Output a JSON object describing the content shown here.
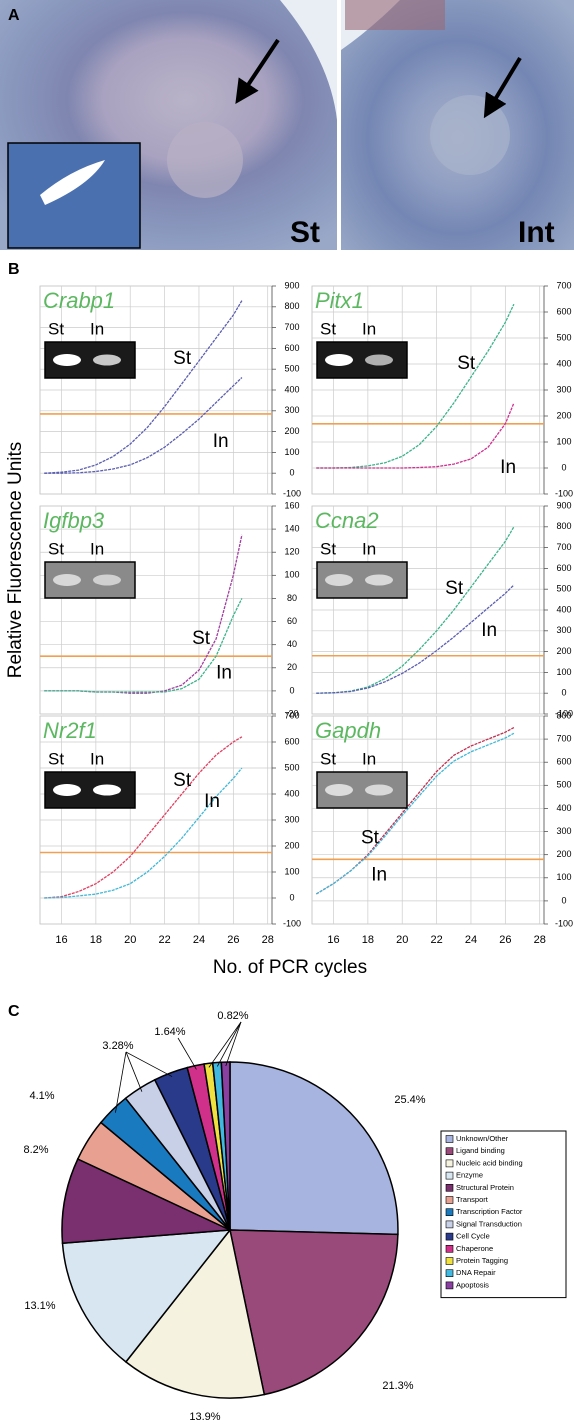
{
  "figure": {
    "panel_a": {
      "label": "A",
      "left_label": "St",
      "right_label": "Int"
    },
    "panel_b": {
      "label": "B",
      "y_label": "Relative Fluorescence Units",
      "x_label": "No. of PCR cycles"
    },
    "panel_c": {
      "label": "C"
    }
  },
  "chart_data": [
    {
      "type": "line",
      "title": "Crabp1",
      "x": [
        15,
        16,
        17,
        18,
        19,
        20,
        21,
        22,
        23,
        24,
        25,
        26,
        26.5
      ],
      "xlim": [
        14.75,
        28.25
      ],
      "xticks": [
        16,
        18,
        20,
        22,
        24,
        26,
        28
      ],
      "ylim": [
        -100,
        900
      ],
      "yticks": [
        -100,
        0,
        100,
        200,
        300,
        400,
        500,
        600,
        700,
        800,
        900
      ],
      "threshold": 285,
      "threshold_color": "#f0a050",
      "grid": true,
      "series": [
        {
          "name": "St",
          "color": "#5b5fb0",
          "values": [
            0,
            5,
            15,
            40,
            80,
            140,
            220,
            320,
            430,
            540,
            650,
            760,
            830
          ]
        },
        {
          "name": "In",
          "color": "#5b5fb0",
          "values": [
            0,
            0,
            2,
            8,
            20,
            40,
            75,
            125,
            190,
            260,
            340,
            420,
            460
          ]
        }
      ]
    },
    {
      "type": "line",
      "title": "Pitx1",
      "x": [
        15,
        16,
        17,
        18,
        19,
        20,
        21,
        22,
        23,
        24,
        25,
        26,
        26.5
      ],
      "xlim": [
        14.75,
        28.25
      ],
      "xticks": [
        16,
        18,
        20,
        22,
        24,
        26,
        28
      ],
      "ylim": [
        -100,
        700
      ],
      "yticks": [
        -100,
        0,
        100,
        200,
        300,
        400,
        500,
        600,
        700
      ],
      "threshold": 170,
      "threshold_color": "#f0a050",
      "grid": true,
      "series": [
        {
          "name": "St",
          "color": "#3cb38a",
          "values": [
            0,
            0,
            2,
            8,
            20,
            45,
            90,
            160,
            250,
            350,
            450,
            560,
            630
          ]
        },
        {
          "name": "In",
          "color": "#d03090",
          "values": [
            0,
            0,
            0,
            0,
            0,
            0,
            2,
            5,
            15,
            35,
            80,
            170,
            250
          ]
        }
      ]
    },
    {
      "type": "line",
      "title": "Igfbp3",
      "x": [
        15,
        16,
        17,
        18,
        19,
        20,
        21,
        22,
        23,
        24,
        25,
        26,
        26.5
      ],
      "xlim": [
        14.75,
        28.25
      ],
      "xticks": [
        16,
        18,
        20,
        22,
        24,
        26,
        28
      ],
      "ylim": [
        -20,
        160
      ],
      "yticks": [
        -20,
        0,
        20,
        40,
        60,
        80,
        100,
        120,
        140,
        160
      ],
      "threshold": 30,
      "threshold_color": "#f0a050",
      "grid": true,
      "series": [
        {
          "name": "St",
          "color": "#a040a0",
          "values": [
            0,
            0,
            0,
            -1,
            -1,
            -2,
            -2,
            0,
            5,
            18,
            45,
            100,
            135
          ]
        },
        {
          "name": "In",
          "color": "#3cb38a",
          "values": [
            0,
            0,
            0,
            -1,
            -1,
            -1,
            -1,
            -1,
            2,
            10,
            30,
            65,
            80
          ]
        }
      ]
    },
    {
      "type": "line",
      "title": "Ccna2",
      "x": [
        15,
        16,
        17,
        18,
        19,
        20,
        21,
        22,
        23,
        24,
        25,
        26,
        26.5
      ],
      "xlim": [
        14.75,
        28.25
      ],
      "xticks": [
        16,
        18,
        20,
        22,
        24,
        26,
        28
      ],
      "ylim": [
        -100,
        900
      ],
      "yticks": [
        -100,
        0,
        100,
        200,
        300,
        400,
        500,
        600,
        700,
        800,
        900
      ],
      "threshold": 180,
      "threshold_color": "#f0a050",
      "grid": true,
      "series": [
        {
          "name": "St",
          "color": "#3cb38a",
          "values": [
            0,
            2,
            10,
            30,
            70,
            130,
            210,
            300,
            400,
            510,
            620,
            730,
            800
          ]
        },
        {
          "name": "In",
          "color": "#5b5fb0",
          "values": [
            0,
            2,
            8,
            25,
            55,
            95,
            145,
            205,
            270,
            340,
            410,
            480,
            520
          ]
        }
      ]
    },
    {
      "type": "line",
      "title": "Nr2f1",
      "x": [
        15,
        16,
        17,
        18,
        19,
        20,
        21,
        22,
        23,
        24,
        25,
        26,
        26.5
      ],
      "xlim": [
        14.75,
        28.25
      ],
      "xticks": [
        16,
        18,
        20,
        22,
        24,
        26,
        28
      ],
      "ylim": [
        -100,
        700
      ],
      "yticks": [
        -100,
        0,
        100,
        200,
        300,
        400,
        500,
        600,
        700
      ],
      "threshold": 175,
      "threshold_color": "#f0a050",
      "grid": true,
      "series": [
        {
          "name": "St",
          "color": "#e04060",
          "values": [
            0,
            5,
            25,
            55,
            100,
            160,
            240,
            320,
            400,
            480,
            550,
            600,
            620
          ]
        },
        {
          "name": "In",
          "color": "#40b8d8",
          "values": [
            0,
            2,
            8,
            15,
            30,
            55,
            100,
            160,
            230,
            310,
            390,
            460,
            500
          ]
        }
      ]
    },
    {
      "type": "line",
      "title": "Gapdh",
      "x": [
        15,
        16,
        17,
        18,
        19,
        20,
        21,
        22,
        23,
        24,
        25,
        26,
        26.5
      ],
      "xlim": [
        14.75,
        28.25
      ],
      "xticks": [
        16,
        18,
        20,
        22,
        24,
        26,
        28
      ],
      "ylim": [
        -100,
        800
      ],
      "yticks": [
        -100,
        0,
        100,
        200,
        300,
        400,
        500,
        600,
        700,
        800
      ],
      "threshold": 180,
      "threshold_color": "#f0a050",
      "grid": true,
      "series": [
        {
          "name": "St",
          "color": "#c03050",
          "values": [
            30,
            75,
            130,
            200,
            290,
            380,
            470,
            560,
            630,
            670,
            700,
            730,
            750
          ]
        },
        {
          "name": "In",
          "color": "#40b8d8",
          "values": [
            30,
            75,
            130,
            195,
            280,
            370,
            455,
            540,
            605,
            645,
            675,
            705,
            725
          ]
        }
      ]
    },
    {
      "type": "pie",
      "categories": [
        "Unknown/Other",
        "Ligand binding",
        "Nucleic acid binding",
        "Enzyme",
        "Structural Protein",
        "Transport",
        "Transcription Factor",
        "Signal Transduction",
        "Cell Cycle",
        "Chaperone",
        "Protein Tagging",
        "DNA Repair",
        "Apoptosis"
      ],
      "values": [
        25.4,
        21.3,
        13.9,
        13.1,
        8.2,
        4.1,
        3.28,
        3.28,
        3.28,
        1.64,
        0.82,
        0.82,
        0.82
      ],
      "value_labels": [
        "25.4%",
        "21.3%",
        "13.9%",
        "13.1%",
        "8.2%",
        "4.1%",
        "3.28%",
        null,
        null,
        "1.64%",
        "0.82%",
        null,
        null
      ],
      "colors": [
        "#a8b4e0",
        "#9a4a7a",
        "#f5f2e0",
        "#d8e6f2",
        "#7a2f6e",
        "#e8a090",
        "#1a7ac0",
        "#c8d0e8",
        "#2a3a8a",
        "#d0308a",
        "#f0e040",
        "#40b8e0",
        "#8a40a0"
      ],
      "legend": "right"
    }
  ]
}
